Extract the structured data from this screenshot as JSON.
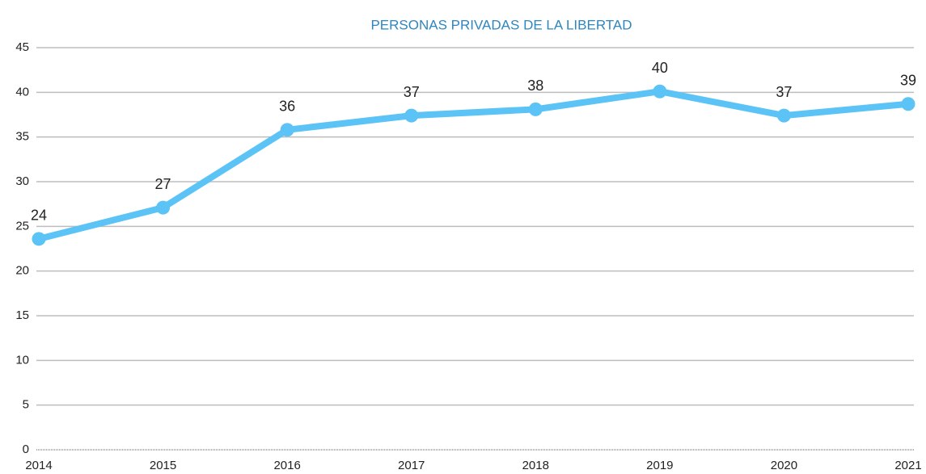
{
  "chart_data": {
    "type": "line",
    "title": "PERSONAS PRIVADAS DE LA LIBERTAD",
    "categories": [
      "2014",
      "2015",
      "2016",
      "2017",
      "2018",
      "2019",
      "2020",
      "2021"
    ],
    "series": [
      {
        "name": "Personas privadas de la libertad",
        "color": "#5bc3f5",
        "values": [
          23.6,
          27.1,
          35.8,
          37.4,
          38.1,
          40.1,
          37.4,
          38.7
        ],
        "value_labels": [
          "24",
          "27",
          "36",
          "37",
          "38",
          "40",
          "37",
          "39"
        ]
      }
    ],
    "ylim": [
      0,
      45
    ],
    "yticks": [
      0,
      5,
      10,
      15,
      20,
      25,
      30,
      35,
      40,
      45
    ],
    "grid": true
  }
}
